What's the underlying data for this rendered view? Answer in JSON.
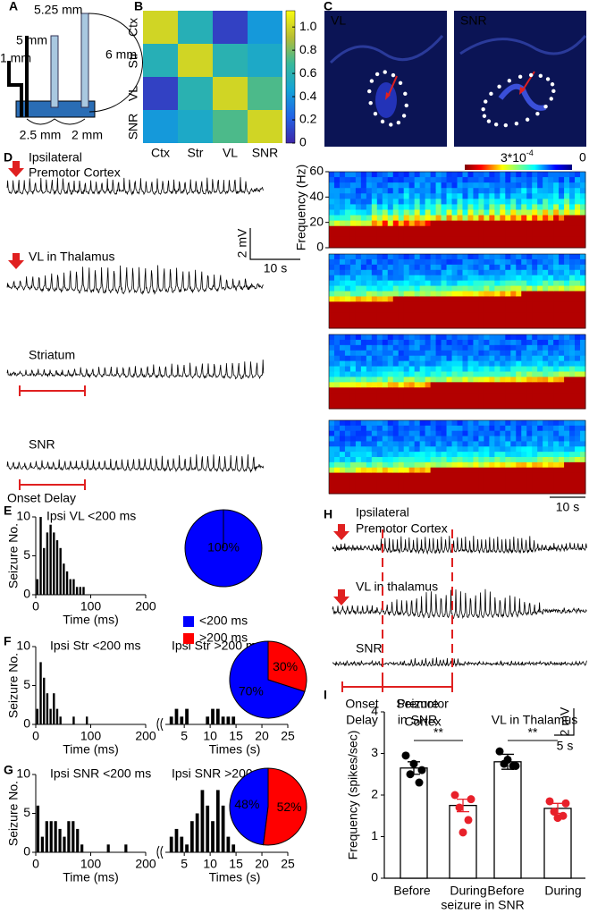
{
  "panel_labels": [
    "A",
    "B",
    "C",
    "D",
    "E",
    "F",
    "G",
    "H",
    "I"
  ],
  "diagram": {
    "labels": [
      "5.25 mm",
      "5 mm",
      "6 mm",
      "1 mm",
      "2.5 mm",
      "2 mm"
    ]
  },
  "histology": {
    "labels": [
      "VL",
      "SNR"
    ]
  },
  "traces_d": {
    "labels": [
      "Ipsilateral",
      "Premotor Cortex",
      "VL in Thalamus",
      "Striatum",
      "SNR",
      "Onset Delay"
    ],
    "scale": [
      "2 mV",
      "10 s"
    ]
  },
  "spectrogram": {
    "ylabel": "Frequency (Hz)",
    "ylim": [
      0,
      60
    ],
    "yticks": [
      0,
      20,
      40,
      60
    ],
    "colorbar": {
      "max_base": "3*10",
      "max_exponent": "-4",
      "min": 0
    },
    "scale": "10 s"
  },
  "traces_h": {
    "labels": [
      "Ipsilateral",
      "Premotor Cortex",
      "VL in thalamus",
      "SNR"
    ],
    "brackets": [
      [
        "Onset",
        "Delay"
      ],
      [
        "Seizure",
        "in SNR"
      ]
    ],
    "scale": [
      "2 mV",
      "5 s"
    ]
  },
  "chart_data": [
    {
      "type": "heatmap",
      "categories": [
        "Ctx",
        "Str",
        "VL",
        "SNR"
      ],
      "values": [
        [
          1.0,
          0.58,
          0.1,
          0.42
        ],
        [
          0.58,
          1.0,
          0.6,
          0.52
        ],
        [
          0.1,
          0.6,
          1.0,
          0.72
        ],
        [
          0.42,
          0.52,
          0.72,
          1.0
        ]
      ],
      "clim": [
        0,
        1.14
      ],
      "cticks": [
        0,
        0.2,
        0.4,
        0.6,
        0.8,
        {
          "value": 1.0,
          "label": "1.0"
        }
      ]
    },
    {
      "type": "histogram",
      "title": "Ipsi VL <200 ms",
      "xlabel": "Time (ms)",
      "ylabel": "Seizure No.",
      "color": "#000000",
      "bins": [
        0,
        6,
        12,
        18,
        24,
        30,
        36,
        42,
        48,
        54,
        60,
        66,
        72,
        78,
        84,
        90
      ],
      "values": [
        2,
        10,
        6,
        8,
        9,
        8,
        7,
        6,
        4,
        3,
        2,
        2,
        1,
        1,
        1
      ],
      "xlim": [
        0,
        200
      ],
      "xticks": [
        0,
        100,
        200
      ],
      "ylim": [
        0,
        10
      ],
      "yticks": [
        0,
        5,
        10
      ]
    },
    {
      "type": "pie",
      "categories": [
        "<200 ms",
        ">200 ms"
      ],
      "colors": [
        "#0000ff",
        "#ff0000"
      ],
      "values": [
        100,
        0
      ],
      "value_labels": [
        "100%",
        null
      ],
      "legend": true
    },
    {
      "type": "histogram",
      "title": "Ipsi Str <200 ms",
      "xlabel": "Time (ms)",
      "ylabel": "Seizure No.",
      "color": "#000000",
      "bins": [
        0,
        6,
        12,
        18,
        24,
        30,
        36,
        42,
        48,
        54,
        60,
        66,
        72,
        78,
        84,
        90,
        96
      ],
      "values": [
        2,
        8,
        6,
        4,
        2,
        4,
        2,
        1,
        0,
        0,
        0,
        1,
        0,
        0,
        0,
        1
      ],
      "xlim": [
        0,
        200
      ],
      "xticks": [
        0,
        100,
        200
      ],
      "ylim": [
        0,
        10
      ],
      "yticks": [
        0,
        5,
        10
      ]
    },
    {
      "type": "histogram",
      "title": "Ipsi Str >200 ms",
      "xlabel": "Times (s)",
      "color": "#000000",
      "bins": [
        2,
        3,
        4,
        5,
        6,
        7,
        8,
        9,
        10,
        11,
        12,
        13,
        14,
        15,
        16
      ],
      "values": [
        1,
        2,
        1,
        2,
        0,
        0,
        0,
        1,
        2,
        2,
        1,
        1,
        1,
        0
      ],
      "xlim": [
        1,
        25
      ],
      "xticks": [
        5,
        10,
        15,
        20,
        25
      ],
      "ylim": [
        0,
        10
      ]
    },
    {
      "type": "pie",
      "colors": [
        "#0000ff",
        "#ff0000"
      ],
      "values": [
        70,
        30
      ],
      "value_labels": [
        "70%",
        "30%"
      ]
    },
    {
      "type": "histogram",
      "title": "Ipsi SNR <200 ms",
      "xlabel": "Time (ms)",
      "ylabel": "Seizure No.",
      "color": "#000000",
      "bins": [
        0,
        8,
        16,
        24,
        32,
        40,
        48,
        56,
        64,
        72,
        80,
        88,
        96,
        104,
        112,
        120,
        128,
        136,
        144,
        152,
        160,
        168
      ],
      "values": [
        6,
        2,
        4,
        4,
        4,
        3,
        2,
        4,
        4,
        3,
        1,
        0,
        0,
        0,
        0,
        0,
        1,
        0,
        0,
        0,
        1
      ],
      "xlim": [
        0,
        200
      ],
      "xticks": [
        0,
        100,
        200
      ],
      "ylim": [
        0,
        10
      ],
      "yticks": [
        0,
        5,
        10
      ]
    },
    {
      "type": "histogram",
      "title": "Ipsi SNR >200 ms",
      "xlabel": "Times (s)",
      "color": "#000000",
      "bins": [
        2,
        3,
        4,
        5,
        6,
        7,
        8,
        9,
        10,
        11,
        12,
        13,
        14,
        15,
        16
      ],
      "values": [
        2,
        3,
        2,
        1,
        4,
        5,
        8,
        6,
        4,
        8,
        6,
        2,
        1,
        0
      ],
      "xlim": [
        1,
        25
      ],
      "xticks": [
        5,
        10,
        15,
        20,
        25
      ],
      "ylim": [
        0,
        10
      ]
    },
    {
      "type": "pie",
      "colors": [
        "#0000ff",
        "#ff0000"
      ],
      "values": [
        48,
        52
      ],
      "value_labels": [
        "48%",
        "52%"
      ]
    },
    {
      "type": "bar",
      "categories": [
        "Before",
        "During",
        "Before",
        "During"
      ],
      "xlabel": "seizure in SNR",
      "group_labels": [
        [
          "Premotor",
          "Cortex"
        ],
        [
          "VL in Thalamus"
        ]
      ],
      "ylabel": "Frequency (spikes/sec)",
      "values": [
        2.65,
        1.75,
        2.8,
        1.68
      ],
      "errors": [
        0.15,
        0.15,
        0.18,
        0.12
      ],
      "points": [
        [
          2.95,
          2.6,
          2.5,
          2.3,
          2.75
        ],
        [
          2.0,
          1.9,
          1.7,
          1.4,
          1.1
        ],
        [
          3.05,
          2.7,
          2.75,
          2.7,
          2.85
        ],
        [
          1.85,
          1.8,
          1.6,
          1.5,
          1.45
        ]
      ],
      "point_colors": [
        "#000000",
        "#e8202a",
        "#000000",
        "#e8202a"
      ],
      "significance": [
        "**",
        "**"
      ],
      "ylim": [
        0,
        4
      ],
      "yticks": [
        0,
        1,
        2,
        3,
        4
      ]
    }
  ]
}
